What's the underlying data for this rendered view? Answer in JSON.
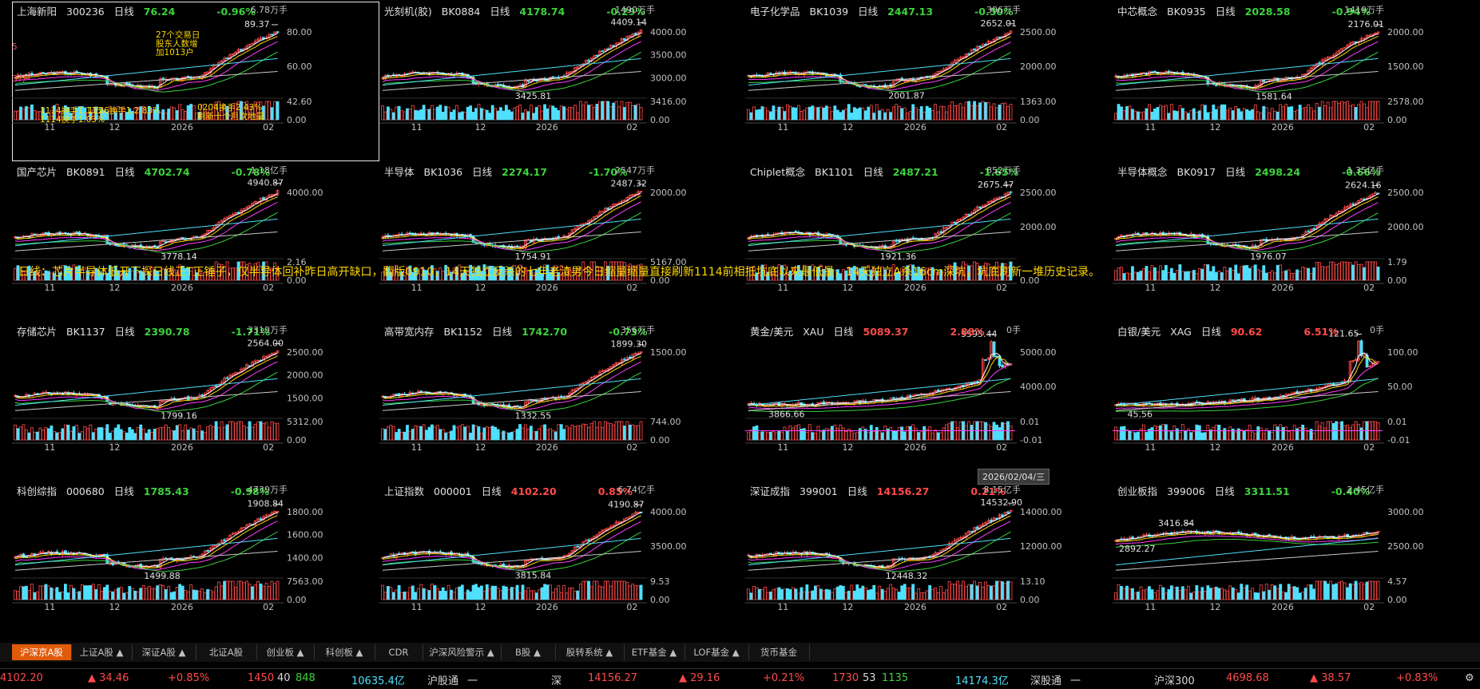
{
  "panels": [
    {
      "name": "上海新阳",
      "code": "300236",
      "period": "日线",
      "price": "76.24",
      "pct": "-0.96%",
      "vol": "6.78万手",
      "hi": "89.37",
      "lo": "",
      "ylabels": [
        "80.00",
        "60.00"
      ],
      "vlabels": [
        "42.60",
        "0.00"
      ],
      "xlabels": [
        "11",
        "12",
        "2026",
        "02"
      ],
      "type": "stock",
      "trend": "up",
      "notes": [
        "27个交易日",
        "股东人数增",
        "加1013户",
        "1114换手1.11%",
        "1114换手1.03%",
        "1126换手1.2.83%",
        "0204换手2.43%",
        "刷新十个月次地量",
        "5",
        "37户"
      ]
    },
    {
      "name": "光刻机(胶)",
      "code": "BK0884",
      "period": "日线",
      "price": "4178.74",
      "pct": "-0.29%",
      "vol": "1490万手",
      "hi": "4409.14",
      "lo": "3425.81",
      "ylabels": [
        "4000.00",
        "3500.00",
        "3000.00"
      ],
      "vlabels": [
        "3416.00",
        "0.00"
      ],
      "xlabels": [
        "11",
        "12",
        "2026",
        "02"
      ],
      "type": "sector",
      "trend": "up"
    },
    {
      "name": "电子化学品",
      "code": "BK1039",
      "period": "日线",
      "price": "2447.13",
      "pct": "-0.50%",
      "vol": "396万手",
      "hi": "2652.01",
      "lo": "2001.87",
      "ylabels": [
        "2500.00",
        "2000.00"
      ],
      "vlabels": [
        "1363.00",
        "0.00"
      ],
      "xlabels": [
        "11",
        "12",
        "2026",
        "02"
      ],
      "type": "sector",
      "trend": "up"
    },
    {
      "name": "中芯概念",
      "code": "BK0935",
      "period": "日线",
      "price": "2028.58",
      "pct": "-0.94%",
      "vol": "1419万手",
      "hi": "2176.01",
      "lo": "1581.64",
      "ylabels": [
        "2000.00",
        "1500.00"
      ],
      "vlabels": [
        "2578.00",
        "0.00"
      ],
      "xlabels": [
        "11",
        "12",
        "2026",
        "02"
      ],
      "type": "sector",
      "trend": "up"
    },
    {
      "name": "国产芯片",
      "code": "BK0891",
      "period": "日线",
      "price": "4702.74",
      "pct": "-0.78%",
      "vol": "1.18亿手",
      "hi": "4940.87",
      "lo": "3778.14",
      "ylabels": [
        "4000.00"
      ],
      "vlabels": [
        "2.16",
        "0.00"
      ],
      "xlabels": [
        "11",
        "12",
        "2026",
        "02"
      ],
      "type": "sector",
      "trend": "up"
    },
    {
      "name": "半导体",
      "code": "BK1036",
      "period": "日线",
      "price": "2274.17",
      "pct": "-1.70%",
      "vol": "2547万手",
      "hi": "2487.32",
      "lo": "1754.91",
      "ylabels": [
        "2000.00"
      ],
      "vlabels": [
        "5167.00",
        "0.00"
      ],
      "xlabels": [
        "11",
        "12",
        "2026",
        "02"
      ],
      "type": "sector",
      "trend": "up"
    },
    {
      "name": "Chiplet概念",
      "code": "BK1101",
      "period": "日线",
      "price": "2487.21",
      "pct": "-1.65%",
      "vol": "852万手",
      "hi": "2675.47",
      "lo": "1921.36",
      "ylabels": [
        "2500.00",
        "2000.00"
      ],
      "vlabels": [
        "",
        "0.00"
      ],
      "xlabels": [
        "11",
        "12",
        "2026",
        "02"
      ],
      "type": "sector",
      "trend": "up"
    },
    {
      "name": "半导体概念",
      "code": "BK0917",
      "period": "日线",
      "price": "2498.24",
      "pct": "-0.66%",
      "vol": "1.35亿手",
      "hi": "2624.16",
      "lo": "1976.07",
      "ylabels": [
        "2500.00",
        "2000.00"
      ],
      "vlabels": [
        "1.79",
        "0.00"
      ],
      "xlabels": [
        "11",
        "12",
        "2026",
        "02"
      ],
      "type": "sector",
      "trend": "up"
    },
    {
      "name": "存储芯片",
      "code": "BK1137",
      "period": "日线",
      "price": "2390.78",
      "pct": "-1.71%",
      "vol": "3319万手",
      "hi": "2564.00",
      "lo": "1799.16",
      "ylabels": [
        "2500.00",
        "2000.00",
        "1500.00"
      ],
      "vlabels": [
        "5312.00",
        "0.00"
      ],
      "xlabels": [
        "11",
        "12",
        "2026",
        "02"
      ],
      "type": "sector",
      "trend": "up"
    },
    {
      "name": "高带宽内存",
      "code": "BK1152",
      "period": "日线",
      "price": "1742.70",
      "pct": "-0.73%",
      "vol": "356万手",
      "hi": "1899.30",
      "lo": "1332.55",
      "ylabels": [
        "1500.00"
      ],
      "vlabels": [
        "744.00",
        "0.00"
      ],
      "xlabels": [
        "11",
        "12",
        "2026",
        "02"
      ],
      "type": "sector",
      "trend": "up"
    },
    {
      "name": "黄金/美元",
      "code": "XAU",
      "period": "日线",
      "price": "5089.37",
      "pct": "2.88%",
      "vol": "0手",
      "hi": "5595.44",
      "lo": "3866.66",
      "ylabels": [
        "5000.00",
        "4000.00"
      ],
      "vlabels": [
        "0.01",
        "-0.01"
      ],
      "xlabels": [
        "11",
        "12",
        "2026",
        "02"
      ],
      "type": "metal",
      "trend": "spike"
    },
    {
      "name": "白银/美元",
      "code": "XAG",
      "period": "日线",
      "price": "90.62",
      "pct": "6.51%",
      "vol": "0手",
      "hi": "121.65",
      "lo": "45.56",
      "ylabels": [
        "100.00",
        "50.00"
      ],
      "vlabels": [
        "0.01",
        "-0.01"
      ],
      "xlabels": [
        "11",
        "12",
        "2026",
        "02"
      ],
      "type": "metal",
      "trend": "spike"
    },
    {
      "name": "科创综指",
      "code": "000680",
      "period": "日线",
      "price": "1785.43",
      "pct": "-0.98%",
      "vol": "4739万手",
      "hi": "1908.84",
      "lo": "1499.88",
      "ylabels": [
        "1800.00",
        "1600.00",
        "1400.00"
      ],
      "vlabels": [
        "7563.00",
        "0.00"
      ],
      "xlabels": [
        "11",
        "12",
        "2026",
        "02"
      ],
      "type": "index",
      "trend": "up"
    },
    {
      "name": "上证指数",
      "code": "000001",
      "period": "日线",
      "price": "4102.20",
      "pct": "0.85%",
      "vol": "6.74亿手",
      "hi": "4190.87",
      "lo": "3815.84",
      "ylabels": [
        "4000.00",
        "3500.00"
      ],
      "vlabels": [
        "9.53",
        "0.00"
      ],
      "xlabels": [
        "11",
        "12",
        "2026",
        "02"
      ],
      "type": "index",
      "trend": "up"
    },
    {
      "name": "深证成指",
      "code": "399001",
      "period": "日线",
      "price": "14156.27",
      "pct": "0.21%",
      "vol": "8.15亿手",
      "hi": "14532.90",
      "lo": "12448.32",
      "ylabels": [
        "14000.00",
        "12000.00"
      ],
      "vlabels": [
        "13.10",
        "0.00"
      ],
      "xlabels": [
        "11",
        "12",
        "2026",
        "02"
      ],
      "type": "index",
      "trend": "up"
    },
    {
      "name": "创业板指",
      "code": "399006",
      "period": "日线",
      "price": "3311.51",
      "pct": "-0.40%",
      "vol": "2.45亿手",
      "hi": "3416.84",
      "lo": "2892.27",
      "ylabels": [
        "3000.00",
        "2500.00"
      ],
      "vlabels": [
        "4.57",
        "0.00"
      ],
      "xlabels": [
        "11",
        "12",
        "2026",
        "02"
      ],
      "type": "index",
      "trend": "flat"
    }
  ],
  "annotation": "日线：芯片半导体低开下探日线正T正锤子，仅半导体回补昨日高开缺口，翻版0910，14天独立反杀的七年老渣男今日缩量缩量直接刷新1114前相抵坑底以来最低量，14天独立A杀16cm深坑，坑底刷新一堆历史记录。",
  "date_tag": "2026/02/04/三",
  "tabs": [
    "沪深京A股",
    "上证A股 ▲",
    "深证A股 ▲",
    "北证A股",
    "创业板 ▲",
    "科创板 ▲",
    "CDR",
    "沪深风险警示 ▲",
    "B股 ▲",
    "股转系统 ▲",
    "ETF基金 ▲",
    "LOF基金 ▲",
    "货币基金"
  ],
  "status": {
    "sh_index": "4102.20",
    "sh_change": "▲ 34.46",
    "sh_pct": "+0.85%",
    "sh_up": "1450",
    "sh_flat": "40",
    "sh_down": "848",
    "sh_amount": "10635.4亿",
    "hgt": "沪股通",
    "hgt_val": "一",
    "sz_label": "深",
    "sz_index": "14156.27",
    "sz_change": "▲ 29.16",
    "sz_pct": "+0.21%",
    "sz_up": "1730",
    "sz_flat": "53",
    "sz_down": "1135",
    "sz_amount": "14174.3亿",
    "sgt": "深股通",
    "sgt_val": "一",
    "hs300_label": "沪深300",
    "hs300": "4698.68",
    "hs300_change": "▲ 38.57",
    "hs300_pct": "+0.83%"
  },
  "colors": {
    "up": "#ff4a4a",
    "down": "#3cd23c",
    "accent": "#e05a0a",
    "volBar": "#4fe0ff",
    "annotation": "#ffd800"
  }
}
